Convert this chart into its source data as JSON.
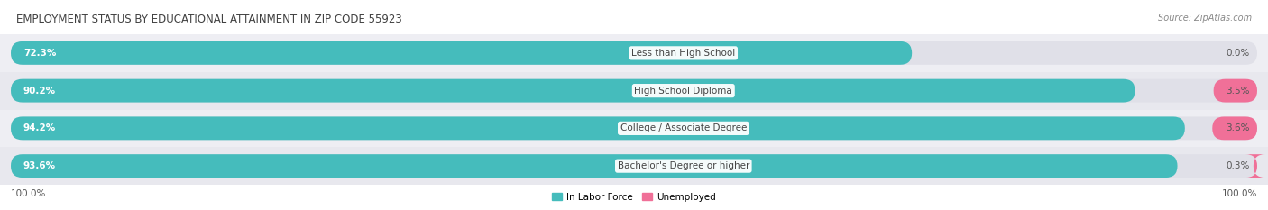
{
  "title": "EMPLOYMENT STATUS BY EDUCATIONAL ATTAINMENT IN ZIP CODE 55923",
  "source": "Source: ZipAtlas.com",
  "categories": [
    "Less than High School",
    "High School Diploma",
    "College / Associate Degree",
    "Bachelor's Degree or higher"
  ],
  "in_labor_force": [
    72.3,
    90.2,
    94.2,
    93.6
  ],
  "unemployed": [
    0.0,
    3.5,
    3.6,
    0.3
  ],
  "labor_force_color": "#45BCBC",
  "unemployed_color": "#F07098",
  "bar_bg_color": "#E0E0E8",
  "row_bg_even": "#EEEEF3",
  "row_bg_odd": "#E8E8EE",
  "axis_label_left": "100.0%",
  "axis_label_right": "100.0%",
  "title_fontsize": 8.5,
  "label_fontsize": 7.5,
  "pct_fontsize": 7.5,
  "source_fontsize": 7,
  "legend_fontsize": 7.5
}
